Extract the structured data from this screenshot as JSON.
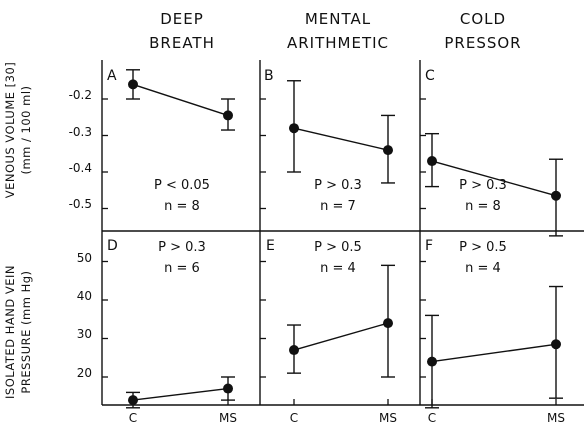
{
  "column_headers": [
    {
      "line1": "DEEP",
      "line2": "BREATH"
    },
    {
      "line1": "MENTAL",
      "line2": "ARITHMETIC"
    },
    {
      "line1": "COLD",
      "line2": "PRESSOR"
    }
  ],
  "y_labels": {
    "top_line1": "VENOUS VOLUME [30]",
    "top_line2": "(mm / 100 ml)",
    "bottom_line1": "ISOLATED HAND VEIN",
    "bottom_line2": "PRESSURE (mm Hg)"
  },
  "x_tick_labels": [
    "C",
    "MS"
  ],
  "colors": {
    "ink": "#111111",
    "background": "#ffffff"
  },
  "chart_data": [
    {
      "panel": "A",
      "type": "line",
      "row": "venous_volume",
      "column": "DEEP BREATH",
      "categories": [
        "C",
        "MS"
      ],
      "values": [
        -0.16,
        -0.245
      ],
      "error_low": [
        -0.2,
        -0.285
      ],
      "error_high": [
        -0.12,
        -0.2
      ],
      "p_text": "P < 0.05",
      "n_text": "n = 8",
      "ylim": [
        -0.58,
        -0.1
      ],
      "yticks": [
        -0.2,
        -0.3,
        -0.4,
        -0.5
      ],
      "ytick_labels": [
        "-0.2",
        "-0.3",
        "-0.4",
        "-0.5"
      ]
    },
    {
      "panel": "B",
      "type": "line",
      "row": "venous_volume",
      "column": "MENTAL ARITHMETIC",
      "categories": [
        "C",
        "MS"
      ],
      "values": [
        -0.28,
        -0.34
      ],
      "error_low": [
        -0.4,
        -0.43
      ],
      "error_high": [
        -0.15,
        -0.245
      ],
      "p_text": "P > 0.3",
      "n_text": "n = 7",
      "ylim": [
        -0.58,
        -0.1
      ]
    },
    {
      "panel": "C",
      "type": "line",
      "row": "venous_volume",
      "column": "COLD PRESSOR",
      "categories": [
        "C",
        "MS"
      ],
      "values": [
        -0.37,
        -0.465
      ],
      "error_low": [
        -0.44,
        -0.575
      ],
      "error_high": [
        -0.295,
        -0.365
      ],
      "p_text": "P > 0.3",
      "n_text": "n = 8",
      "ylim": [
        -0.58,
        -0.1
      ]
    },
    {
      "panel": "D",
      "type": "line",
      "row": "hand_vein_pressure",
      "column": "DEEP BREATH",
      "categories": [
        "C",
        "MS"
      ],
      "values": [
        14,
        17
      ],
      "error_low": [
        12,
        14
      ],
      "error_high": [
        16,
        20
      ],
      "p_text": "P > 0.3",
      "n_text": "n = 6",
      "ylim": [
        10,
        56
      ],
      "yticks": [
        20,
        30,
        40,
        50
      ],
      "ytick_labels": [
        "20",
        "30",
        "40",
        "50"
      ]
    },
    {
      "panel": "E",
      "type": "line",
      "row": "hand_vein_pressure",
      "column": "MENTAL ARITHMETIC",
      "categories": [
        "C",
        "MS"
      ],
      "values": [
        27,
        34
      ],
      "error_low": [
        21,
        20
      ],
      "error_high": [
        33.5,
        49
      ],
      "p_text": "P > 0.5",
      "n_text": "n = 4",
      "ylim": [
        10,
        56
      ]
    },
    {
      "panel": "F",
      "type": "line",
      "row": "hand_vein_pressure",
      "column": "COLD PRESSOR",
      "categories": [
        "C",
        "MS"
      ],
      "values": [
        24,
        28.5
      ],
      "error_low": [
        12,
        14.5
      ],
      "error_high": [
        36,
        43.5
      ],
      "p_text": "P > 0.5",
      "n_text": "n = 4",
      "ylim": [
        10,
        56
      ]
    }
  ]
}
